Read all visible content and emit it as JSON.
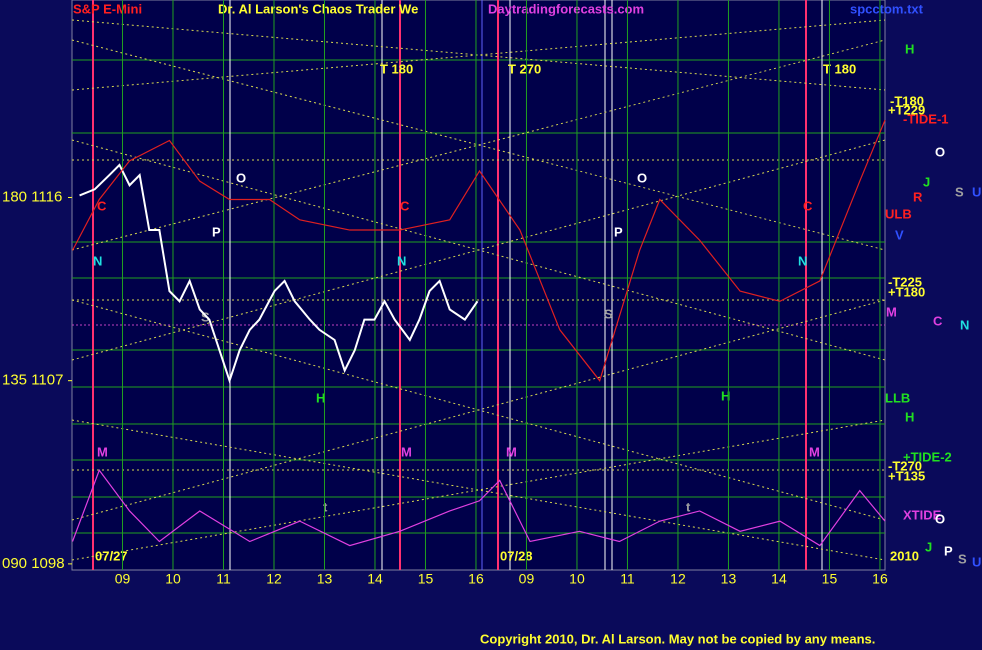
{
  "chart_data": {
    "type": "line",
    "title": "Dr. Al Larson's Chaos Trader We",
    "instrument": "S&P E-Mini",
    "site": "Daytradingforecasts.com",
    "file": "spcctom.txt",
    "copyright": "Copyright 2010, Dr. Al Larson. May not be copied by any means.",
    "xlim": [
      -1.0,
      15.1
    ],
    "xticks": [
      {
        "value": 0,
        "label": "09"
      },
      {
        "value": 1,
        "label": "10"
      },
      {
        "value": 2,
        "label": "11"
      },
      {
        "value": 3,
        "label": "12"
      },
      {
        "value": 4,
        "label": "13"
      },
      {
        "value": 5,
        "label": "14"
      },
      {
        "value": 6,
        "label": "15"
      },
      {
        "value": 7,
        "label": "16"
      },
      {
        "value": 8,
        "label": "09"
      },
      {
        "value": 9,
        "label": "10"
      },
      {
        "value": 10,
        "label": "11"
      },
      {
        "value": 11,
        "label": "12"
      },
      {
        "value": 12,
        "label": "13"
      },
      {
        "value": 13,
        "label": "14"
      },
      {
        "value": 14,
        "label": "15"
      },
      {
        "value": 15,
        "label": "16"
      }
    ],
    "ylim": [
      1097.7,
      1125.7
    ],
    "yticks": [
      {
        "value": 1116,
        "label": "180 1116"
      },
      {
        "value": 1107,
        "label": "135 1107"
      },
      {
        "value": 1098,
        "label": "090 1098"
      }
    ],
    "series": [
      {
        "color": "#ffffff",
        "x": [
          -0.85,
          -0.55,
          -0.26,
          -0.06,
          0.14,
          0.34,
          0.53,
          0.73,
          0.93,
          1.13,
          1.33,
          1.53,
          1.72,
          1.92,
          2.12,
          2.32,
          2.52,
          2.71,
          3.01,
          3.21,
          3.41,
          3.71,
          3.9,
          4.2,
          4.4,
          4.6,
          4.79,
          4.99,
          5.19,
          5.39,
          5.69,
          5.88,
          6.08,
          6.28,
          6.48,
          6.78,
          7.03
        ],
        "values": [
          1116.1,
          1116.4,
          1117.1,
          1117.6,
          1116.6,
          1117.1,
          1114.4,
          1114.4,
          1111.4,
          1110.9,
          1111.9,
          1110.5,
          1110.0,
          1108.5,
          1107.0,
          1108.5,
          1109.5,
          1110.0,
          1111.4,
          1111.9,
          1110.9,
          1110.0,
          1109.5,
          1109.0,
          1107.5,
          1108.5,
          1110.0,
          1110.0,
          1110.9,
          1110.0,
          1109.0,
          1110.0,
          1111.4,
          1111.9,
          1110.5,
          1110.0,
          1110.9
        ]
      },
      {
        "color": "#e02020",
        "x": [
          -0.99,
          -0.46,
          0.14,
          0.93,
          1.53,
          2.12,
          2.91,
          3.51,
          4.5,
          5.49,
          6.48,
          7.07,
          7.87,
          8.66,
          9.45,
          10.24,
          10.64,
          11.43,
          12.23,
          13.02,
          13.81,
          14.6,
          15.1
        ],
        "values": [
          1113.4,
          1115.9,
          1117.8,
          1118.8,
          1116.8,
          1115.9,
          1115.9,
          1114.9,
          1114.4,
          1114.4,
          1114.9,
          1117.3,
          1114.4,
          1109.5,
          1107.0,
          1113.4,
          1115.9,
          1113.9,
          1111.4,
          1110.9,
          1111.9,
          1116.8,
          1119.8
        ]
      },
      {
        "color": "#e040e0",
        "x": [
          -0.99,
          -0.46,
          0.14,
          0.73,
          1.53,
          2.52,
          3.51,
          4.5,
          5.49,
          6.48,
          7.07,
          7.47,
          8.07,
          9.05,
          9.84,
          10.64,
          11.43,
          12.23,
          13.02,
          13.81,
          14.6,
          15.1
        ],
        "values": [
          1099.1,
          1102.6,
          1100.6,
          1099.1,
          1100.6,
          1099.1,
          1100.1,
          1098.9,
          1099.6,
          1100.6,
          1101.1,
          1102.1,
          1099.1,
          1099.6,
          1099.1,
          1100.1,
          1100.6,
          1099.6,
          1100.1,
          1098.9,
          1101.6,
          1100.1
        ]
      }
    ],
    "annotations": [
      "T 180",
      "T 270",
      "T 180",
      "H",
      "-T180",
      "+T229",
      "-TIDE-1",
      "O",
      "O",
      "O",
      "J",
      "R",
      "S",
      "U",
      "ULB",
      "V",
      "P",
      "P",
      "N",
      "N",
      "N",
      "C",
      "C",
      "C",
      "-T225",
      "+T180",
      "M",
      "C",
      "N",
      "S",
      "S",
      "H",
      "H",
      "LLB",
      "H",
      "M",
      "M",
      "M",
      "M",
      "+TIDE-2",
      "-T270",
      "+T135",
      "XTIDE",
      "O",
      "J",
      "P",
      "S",
      "U",
      "07/27",
      "07/28",
      "2010",
      "t",
      "t"
    ]
  }
}
